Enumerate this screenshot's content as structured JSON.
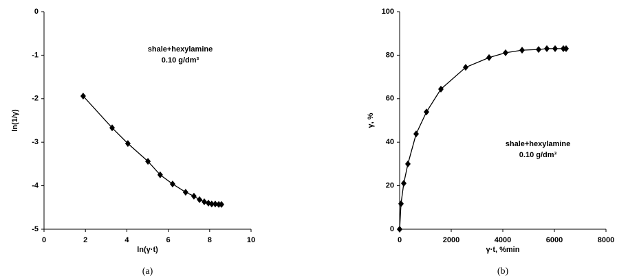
{
  "chart_data": [
    {
      "type": "line",
      "x_label": "ln(γ·t)",
      "y_label": "ln(1/γ)",
      "caption": "(a)",
      "annotations": [
        "shale+hexylamine",
        "0.10 g/dm³"
      ],
      "color": "#000000",
      "x": [
        1.89,
        3.29,
        4.05,
        5.02,
        5.61,
        6.21,
        6.84,
        7.24,
        7.51,
        7.74,
        7.94,
        8.1,
        8.27,
        8.44,
        8.57
      ],
      "values": [
        -1.94,
        -2.67,
        -3.03,
        -3.44,
        -3.75,
        -3.96,
        -4.15,
        -4.24,
        -4.32,
        -4.37,
        -4.4,
        -4.42,
        -4.42,
        -4.43,
        -4.43
      ],
      "xlim": [
        0,
        10
      ],
      "xticks": [
        0,
        2,
        4,
        6,
        8,
        10
      ],
      "ylim": [
        -5,
        0
      ],
      "yticks": [
        -5,
        -4,
        -3,
        -2,
        -1,
        0
      ]
    },
    {
      "type": "line",
      "x_label": "γ·t, %min",
      "y_label": "γ, %",
      "caption": "(b)",
      "annotations": [
        "shale+hexylamine",
        "0.10 g/dm³"
      ],
      "color": "#000000",
      "x": [
        0,
        53,
        160,
        320,
        640,
        1040,
        1600,
        2560,
        3467,
        4107,
        4747,
        5387,
        5707,
        6027,
        6347,
        6453
      ],
      "values": [
        0,
        11.7,
        21.1,
        30,
        43.8,
        53.9,
        64.4,
        74.4,
        78.9,
        81.1,
        82.3,
        82.6,
        83,
        83,
        83,
        83
      ],
      "xlim": [
        0,
        8000
      ],
      "xticks": [
        0,
        2000,
        4000,
        6000,
        8000
      ],
      "ylim": [
        0,
        100
      ],
      "yticks": [
        0,
        20,
        40,
        60,
        80,
        100
      ]
    }
  ]
}
